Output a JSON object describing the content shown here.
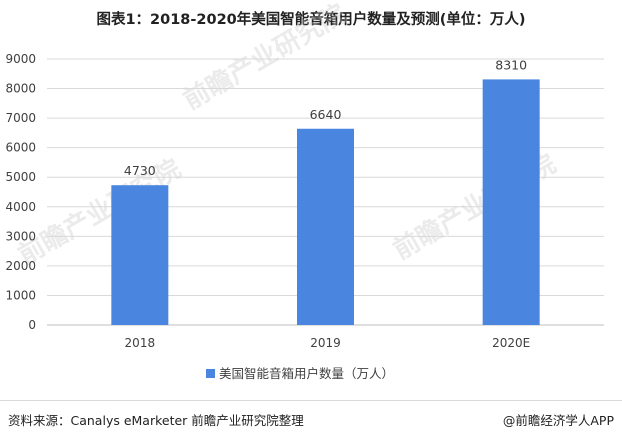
{
  "title": "图表1：2018-2020年美国智能音箱用户数量及预测(单位：万人)",
  "watermark_text": "前瞻产业研究院",
  "source": "资料来源：Canalys eMarketer 前瞻产业研究院整理",
  "brand": "@前瞻经济学人APP",
  "colors": {
    "bar": "#4a86e0",
    "grid": "#d9d9d9",
    "axis": "#bfbfbf"
  },
  "chart_data": {
    "type": "bar",
    "categories": [
      "2018",
      "2019",
      "2020E"
    ],
    "series": [
      {
        "name": "美国智能音箱用户数量（万人）",
        "values": [
          4730,
          6640,
          8310
        ]
      }
    ],
    "ylim": [
      0,
      9000
    ],
    "yticks": [
      0,
      1000,
      2000,
      3000,
      4000,
      5000,
      6000,
      7000,
      8000,
      9000
    ],
    "grid": true,
    "legend": "bottom-center",
    "data_labels": true
  }
}
